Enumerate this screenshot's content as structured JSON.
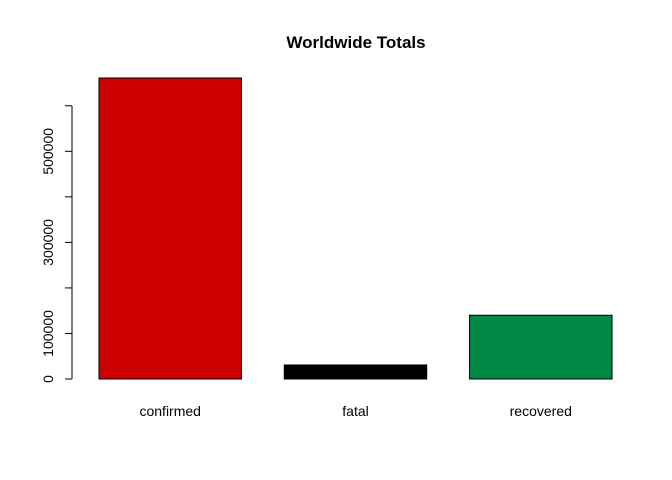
{
  "chart_data": {
    "type": "bar",
    "title": "Worldwide Totals",
    "xlabel": "",
    "ylabel": "",
    "categories": [
      "confirmed",
      "fatal",
      "recovered"
    ],
    "values": [
      661000,
      30800,
      140000
    ],
    "colors": [
      "#CC0000",
      "#000000",
      "#008844"
    ],
    "ylim": [
      0,
      661000
    ],
    "yticks": [
      0,
      100000,
      200000,
      300000,
      400000,
      500000,
      600000
    ],
    "ytick_labels": [
      "0",
      "100000",
      "",
      "300000",
      "",
      "500000",
      ""
    ],
    "grid": false,
    "legend": false
  }
}
